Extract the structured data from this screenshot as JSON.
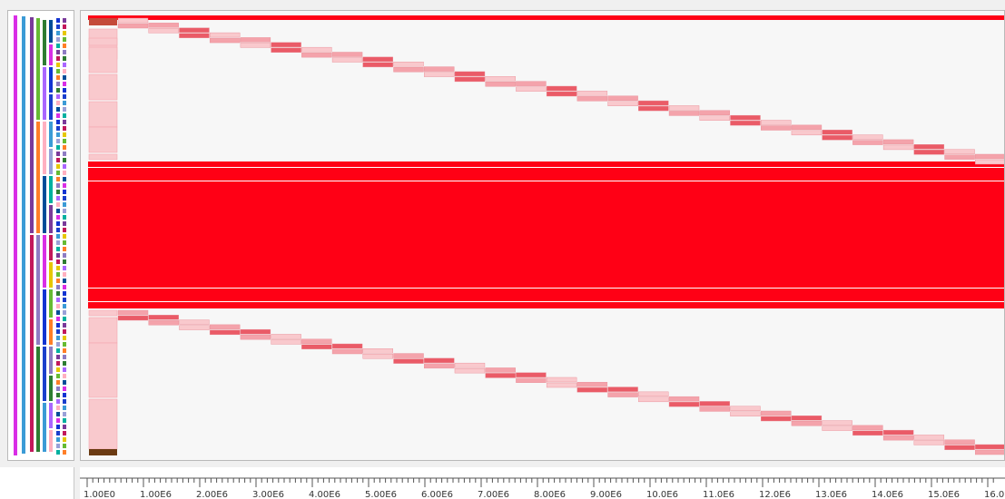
{
  "view": {
    "type": "genome-alignment-track",
    "description": "Read coverage view with a position ruler"
  },
  "colors": {
    "highlight": "#ff0015",
    "block_light": "#f9c9cd",
    "block_mid": "#f4a3ab",
    "block_dark": "#ea5b67",
    "panel_bg": "#f7f7f7"
  },
  "ruler": {
    "ticks": [
      {
        "label": "1.00E0"
      },
      {
        "label": "1.00E6"
      },
      {
        "label": "2.00E6"
      },
      {
        "label": "3.00E6"
      },
      {
        "label": "4.00E6"
      },
      {
        "label": "5.00E6"
      },
      {
        "label": "6.00E6"
      },
      {
        "label": "7.00E6"
      },
      {
        "label": "8.00E6"
      },
      {
        "label": "9.00E6"
      },
      {
        "label": "10.0E6"
      },
      {
        "label": "11.0E6"
      },
      {
        "label": "12.0E6"
      },
      {
        "label": "13.0E6"
      },
      {
        "label": "14.0E6"
      },
      {
        "label": "15.0E6"
      },
      {
        "label": "16.0E6"
      }
    ]
  },
  "tree_colors": [
    "#d92ee6",
    "#1234d2",
    "#1a3fcc",
    "#3b9bd6",
    "#9aa0d8",
    "#00b0a0",
    "#7a3a9a",
    "#c2185b",
    "#e6c700",
    "#66bb33",
    "#ff7f27",
    "#8e7cc3",
    "#2e7d32",
    "#aa66ff",
    "#ffb0c0",
    "#004d99"
  ]
}
